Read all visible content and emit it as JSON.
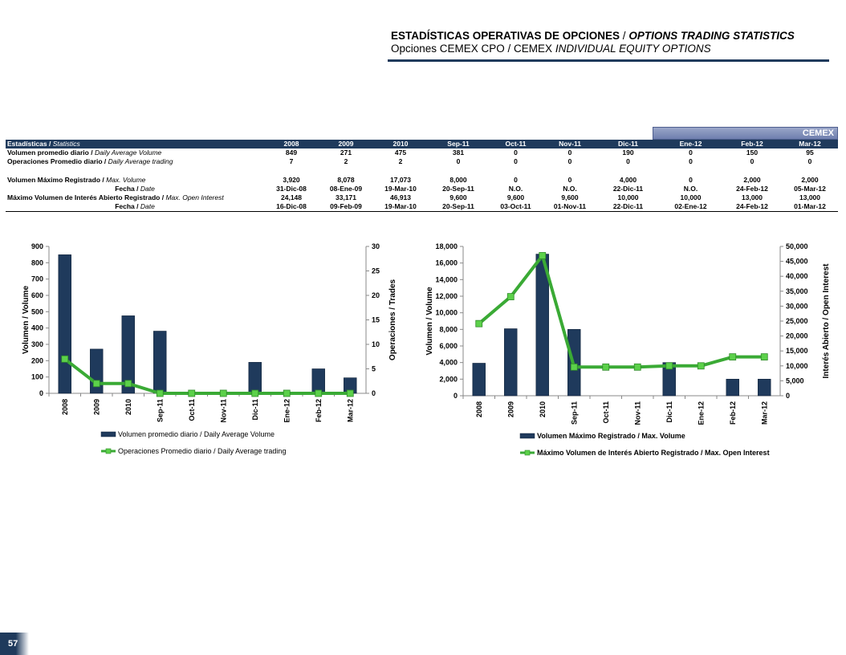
{
  "header": {
    "title_es": "ESTADÍSTICAS OPERATIVAS DE OPCIONES",
    "title_sep": " / ",
    "title_en": "OPTIONS TRADING STATISTICS",
    "subtitle_es": "Opciones CEMEX CPO / CEMEX ",
    "subtitle_en": "INDIVIDUAL EQUITY OPTIONS"
  },
  "cemex_tab": "CEMEX",
  "page_number": "57",
  "table": {
    "header_es": "Estadísticas /",
    "header_en": " Statistics",
    "columns": [
      "2008",
      "2009",
      "2010",
      "Sep-11",
      "Oct-11",
      "Nov-11",
      "Dic-11",
      "Ene-12",
      "Feb-12",
      "Mar-12"
    ],
    "rows": [
      {
        "es": "Volumen promedio diario /",
        "en": " Daily Average Volume",
        "values": [
          "849",
          "271",
          "475",
          "381",
          "0",
          "0",
          "190",
          "0",
          "150",
          "95"
        ]
      },
      {
        "es": "Operaciones Promedio diario /",
        "en": " Daily Average trading",
        "values": [
          "7",
          "2",
          "2",
          "0",
          "0",
          "0",
          "0",
          "0",
          "0",
          "0"
        ]
      },
      {
        "es": "Volumen Máximo Registrado /",
        "en": " Max. Volume",
        "values": [
          "3,920",
          "8,078",
          "17,073",
          "8,000",
          "0",
          "0",
          "4,000",
          "0",
          "2,000",
          "2,000"
        ]
      },
      {
        "es": "Fecha /",
        "en": " Date",
        "values": [
          "31-Dic-08",
          "08-Ene-09",
          "19-Mar-10",
          "20-Sep-11",
          "N.O.",
          "N.O.",
          "22-Dic-11",
          "N.O.",
          "24-Feb-12",
          "05-Mar-12"
        ]
      },
      {
        "es": "Máximo Volumen de Interés Abierto Registrado /",
        "en": " Max. Open Interest",
        "values": [
          "24,148",
          "33,171",
          "46,913",
          "9,600",
          "9,600",
          "9,600",
          "10,000",
          "10,000",
          "13,000",
          "13,000"
        ]
      },
      {
        "es": "Fecha /",
        "en": " Date",
        "values": [
          "16-Dic-08",
          "09-Feb-09",
          "19-Mar-10",
          "20-Sep-11",
          "03-Oct-11",
          "01-Nov-11",
          "22-Dic-11",
          "02-Ene-12",
          "24-Feb-12",
          "01-Mar-12"
        ]
      }
    ]
  },
  "colors": {
    "bar": "#1f3a5c",
    "line": "#3aaa35",
    "marker": "#5cd14a",
    "header_bg": "#1f3a5c"
  },
  "chart_data": [
    {
      "type": "bar",
      "categories": [
        "2008",
        "2009",
        "2010",
        "Sep-11",
        "Oct-11",
        "Nov-11",
        "Dic-11",
        "Ene-12",
        "Feb-12",
        "Mar-12"
      ],
      "ylabel": "Volumen / Volume",
      "y2label": "Operaciones / Trades",
      "ylim": [
        0,
        900
      ],
      "y2lim": [
        0,
        30
      ],
      "yticks": [
        "0",
        "100",
        "200",
        "300",
        "400",
        "500",
        "600",
        "700",
        "800",
        "900"
      ],
      "y2ticks": [
        "0",
        "5",
        "10",
        "15",
        "20",
        "25",
        "30"
      ],
      "series": [
        {
          "name": "Volumen promedio diario / Daily Average Volume",
          "kind": "bar",
          "axis": "left",
          "values": [
            849,
            271,
            475,
            381,
            0,
            0,
            190,
            0,
            150,
            95
          ]
        },
        {
          "name": "Operaciones Promedio diario / Daily Average trading",
          "kind": "line",
          "axis": "right",
          "values": [
            7,
            2,
            2,
            0,
            0,
            0,
            0,
            0,
            0,
            0
          ]
        }
      ],
      "legend": "bottom"
    },
    {
      "type": "bar",
      "categories": [
        "2008",
        "2009",
        "2010",
        "Sep-11",
        "Oct-11",
        "Nov-11",
        "Dic-11",
        "Ene-12",
        "Feb-12",
        "Mar-12"
      ],
      "ylabel": "Volumen / Volume",
      "y2label": "Interés Abierto / Open Interest",
      "ylim": [
        0,
        18000
      ],
      "y2lim": [
        0,
        50000
      ],
      "yticks": [
        "0",
        "2,000",
        "4,000",
        "6,000",
        "8,000",
        "10,000",
        "12,000",
        "14,000",
        "16,000",
        "18,000"
      ],
      "y2ticks": [
        "0",
        "5,000",
        "10,000",
        "15,000",
        "20,000",
        "25,000",
        "30,000",
        "35,000",
        "40,000",
        "45,000",
        "50,000"
      ],
      "series": [
        {
          "name": "Volumen Máximo Registrado  / Max. Volume",
          "kind": "bar",
          "axis": "left",
          "values": [
            3920,
            8078,
            17073,
            8000,
            0,
            0,
            4000,
            0,
            2000,
            2000
          ]
        },
        {
          "name": "Máximo Volumen de Interés Abierto Registrado  / Max. Open Interest",
          "kind": "line",
          "axis": "right",
          "values": [
            24148,
            33171,
            46913,
            9600,
            9600,
            9600,
            10000,
            10000,
            13000,
            13000
          ]
        }
      ],
      "legend": "bottom"
    }
  ]
}
